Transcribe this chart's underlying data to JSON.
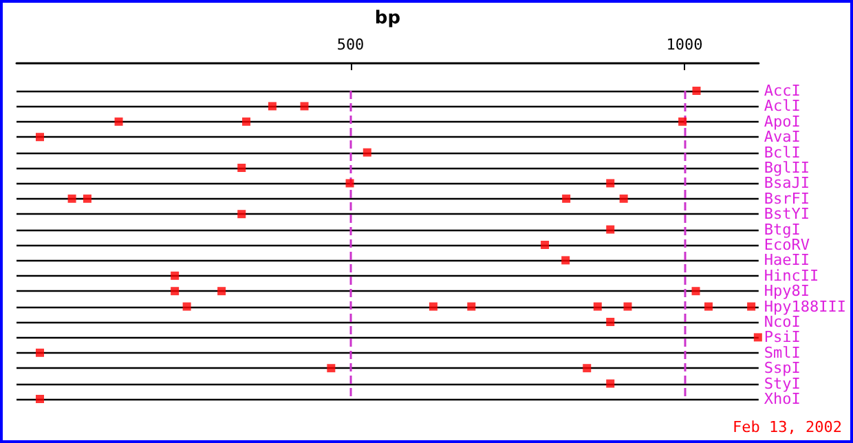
{
  "chart_data": {
    "type": "scatter",
    "orientation": "horizontal",
    "xlabel": "bp",
    "categories": [
      "AccI",
      "AclI",
      "ApoI",
      "AvaI",
      "BclI",
      "BglII",
      "BsaJI",
      "BsrFI",
      "BstYI",
      "BtgI",
      "EcoRV",
      "HaeII",
      "HincII",
      "Hpy8I",
      "Hpy188III",
      "NcoI",
      "PsiI",
      "SmlI",
      "SspI",
      "StyI",
      "XhoI"
    ],
    "series": [
      {
        "color": "#ff0000",
        "values": [
          1018,
          383,
          153,
          35,
          525,
          337,
          499,
          83,
          337,
          889,
          791,
          822,
          237,
          237,
          255,
          889,
          1110,
          35,
          471,
          889,
          35
        ]
      },
      {
        "color": "#ff0000",
        "values": [
          null,
          431,
          344,
          null,
          null,
          null,
          889,
          106,
          null,
          null,
          null,
          null,
          null,
          307,
          624,
          null,
          null,
          null,
          854,
          null,
          null
        ]
      },
      {
        "color": "#ff0000",
        "values": [
          null,
          null,
          997,
          null,
          null,
          null,
          null,
          823,
          null,
          null,
          null,
          null,
          null,
          1017,
          681,
          null,
          null,
          null,
          null,
          null,
          null
        ]
      },
      {
        "color": "#ff0000",
        "values": [
          null,
          null,
          null,
          null,
          null,
          null,
          null,
          909,
          null,
          null,
          null,
          null,
          null,
          null,
          870,
          null,
          null,
          null,
          null,
          null,
          null
        ]
      },
      {
        "color": "#ff0000",
        "values": [
          null,
          null,
          null,
          null,
          null,
          null,
          null,
          null,
          null,
          null,
          null,
          null,
          null,
          null,
          915,
          null,
          null,
          null,
          null,
          null,
          null
        ]
      },
      {
        "color": "#ff0000",
        "values": [
          null,
          null,
          null,
          null,
          null,
          null,
          null,
          null,
          null,
          null,
          null,
          null,
          null,
          null,
          1036,
          null,
          null,
          null,
          null,
          null,
          null
        ]
      },
      {
        "color": "#ff0000",
        "values": [
          null,
          null,
          null,
          null,
          null,
          null,
          null,
          null,
          null,
          null,
          null,
          null,
          null,
          null,
          1100,
          null,
          null,
          null,
          null,
          null,
          null
        ]
      }
    ],
    "xlim": [
      0,
      1111
    ],
    "xticks": [
      500,
      1000
    ],
    "ref_lines": [
      {
        "axis": "x",
        "value": 500,
        "color": "#cc33cc",
        "line_style": "dashed"
      },
      {
        "axis": "x",
        "value": 1000,
        "color": "#cc33cc",
        "line_style": "dashed"
      }
    ],
    "marker": "square",
    "grid": "y",
    "annotations": [
      "Feb 13, 2002"
    ]
  }
}
